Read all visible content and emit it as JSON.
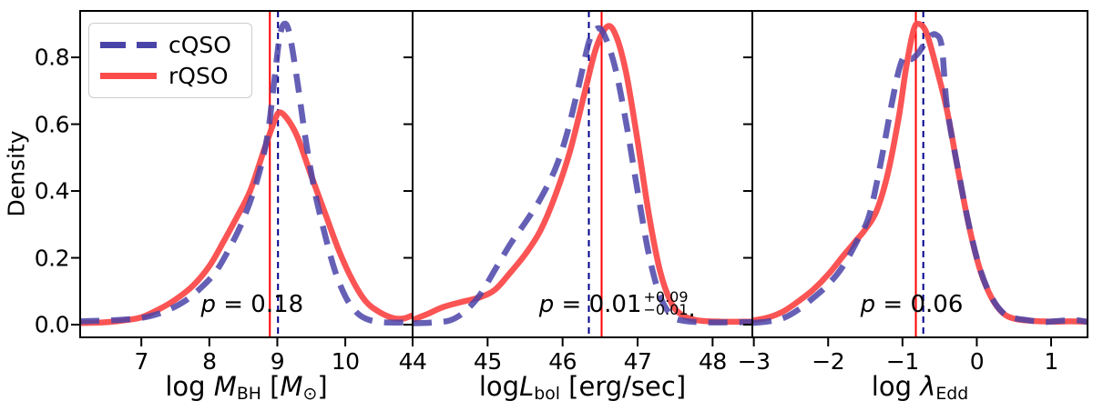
{
  "figure": {
    "ylabel": "Density",
    "y_ticks": {
      "values": [
        0.0,
        0.2,
        0.4,
        0.6,
        0.8
      ],
      "labels": [
        "0.0",
        "0.2",
        "0.4",
        "0.6",
        "0.8"
      ]
    },
    "y_range": [
      -0.038,
      0.939
    ],
    "colors": {
      "cqso_curve": "#4a44a8",
      "rqso_curve": "#fb4b4b",
      "cqso_median_line": "#00008b",
      "rqso_median_line": "#ff0000",
      "axis": "#000000",
      "background": "#ffffff"
    },
    "legend": {
      "entries": [
        {
          "label": "cQSO",
          "style": "dashed",
          "color": "#4a44a8"
        },
        {
          "label": "rQSO",
          "style": "solid",
          "color": "#fb4b4b"
        }
      ]
    }
  },
  "chart_data": [
    {
      "type": "line",
      "panel": "black-hole-mass",
      "xlabel": "log M_BH [M_sun]",
      "xlabel_parts": [
        {
          "t": "log "
        },
        {
          "t": "M",
          "i": true
        },
        {
          "t": "BH",
          "sub": true
        },
        {
          "t": " ["
        },
        {
          "t": "M",
          "i": true
        },
        {
          "t": "⊙",
          "sub": true
        },
        {
          "t": "]"
        }
      ],
      "x_range": [
        6.1,
        10.99
      ],
      "x_ticks": {
        "values": [
          7,
          8,
          9,
          10
        ],
        "labels": [
          "7",
          "8",
          "9",
          "10"
        ]
      },
      "vlines": {
        "rqso": 8.89,
        "cqso": 9.01
      },
      "annotation": {
        "main": "p = 0.18",
        "x": 8.63,
        "y": 0.055
      },
      "series": [
        {
          "name": "rQSO",
          "points": [
            [
              6.1,
              0.005
            ],
            [
              6.45,
              0.007
            ],
            [
              6.75,
              0.013
            ],
            [
              7.0,
              0.022
            ],
            [
              7.25,
              0.045
            ],
            [
              7.5,
              0.075
            ],
            [
              7.75,
              0.115
            ],
            [
              8.0,
              0.175
            ],
            [
              8.2,
              0.245
            ],
            [
              8.4,
              0.32
            ],
            [
              8.6,
              0.4
            ],
            [
              8.8,
              0.52
            ],
            [
              8.95,
              0.605
            ],
            [
              9.03,
              0.635
            ],
            [
              9.15,
              0.615
            ],
            [
              9.3,
              0.56
            ],
            [
              9.5,
              0.445
            ],
            [
              9.7,
              0.335
            ],
            [
              9.9,
              0.225
            ],
            [
              10.1,
              0.135
            ],
            [
              10.3,
              0.07
            ],
            [
              10.5,
              0.038
            ],
            [
              10.7,
              0.02
            ],
            [
              10.85,
              0.018
            ],
            [
              10.99,
              0.028
            ]
          ]
        },
        {
          "name": "cQSO",
          "points": [
            [
              6.1,
              0.01
            ],
            [
              6.45,
              0.012
            ],
            [
              6.75,
              0.015
            ],
            [
              7.05,
              0.022
            ],
            [
              7.35,
              0.04
            ],
            [
              7.65,
              0.072
            ],
            [
              7.9,
              0.115
            ],
            [
              8.1,
              0.16
            ],
            [
              8.3,
              0.23
            ],
            [
              8.5,
              0.315
            ],
            [
              8.7,
              0.43
            ],
            [
              8.85,
              0.56
            ],
            [
              8.95,
              0.72
            ],
            [
              9.03,
              0.855
            ],
            [
              9.1,
              0.9
            ],
            [
              9.18,
              0.87
            ],
            [
              9.3,
              0.72
            ],
            [
              9.42,
              0.55
            ],
            [
              9.55,
              0.4
            ],
            [
              9.7,
              0.27
            ],
            [
              9.85,
              0.16
            ],
            [
              10.0,
              0.085
            ],
            [
              10.15,
              0.04
            ],
            [
              10.3,
              0.018
            ],
            [
              10.5,
              0.008
            ],
            [
              10.75,
              0.006
            ],
            [
              10.99,
              0.008
            ]
          ]
        }
      ]
    },
    {
      "type": "line",
      "panel": "bolometric-luminosity",
      "xlabel": "logL_bol [erg/sec]",
      "xlabel_parts": [
        {
          "t": "log"
        },
        {
          "t": "L",
          "i": true
        },
        {
          "t": "bol",
          "sub": true
        },
        {
          "t": " [erg/sec]"
        }
      ],
      "x_range": [
        44.0,
        48.53
      ],
      "x_ticks": {
        "values": [
          44,
          45,
          46,
          47,
          48
        ],
        "labels": [
          "44",
          "45",
          "46",
          "47",
          "48"
        ]
      },
      "vlines": {
        "rqso": 46.52,
        "cqso": 46.35
      },
      "annotation": {
        "main": "p = 0.01",
        "sup": "+0.09",
        "sub": "−0.01",
        "tail": ".",
        "x": 46.73,
        "y": 0.055
      },
      "series": [
        {
          "name": "rQSO",
          "points": [
            [
              44.0,
              0.014
            ],
            [
              44.2,
              0.032
            ],
            [
              44.4,
              0.052
            ],
            [
              44.65,
              0.068
            ],
            [
              44.9,
              0.082
            ],
            [
              45.1,
              0.105
            ],
            [
              45.3,
              0.155
            ],
            [
              45.5,
              0.21
            ],
            [
              45.7,
              0.28
            ],
            [
              45.9,
              0.385
            ],
            [
              46.1,
              0.52
            ],
            [
              46.3,
              0.7
            ],
            [
              46.45,
              0.83
            ],
            [
              46.6,
              0.893
            ],
            [
              46.72,
              0.86
            ],
            [
              46.85,
              0.75
            ],
            [
              47.0,
              0.55
            ],
            [
              47.15,
              0.33
            ],
            [
              47.3,
              0.16
            ],
            [
              47.45,
              0.065
            ],
            [
              47.6,
              0.028
            ],
            [
              47.8,
              0.013
            ],
            [
              48.1,
              0.009
            ],
            [
              48.53,
              0.009
            ]
          ]
        },
        {
          "name": "cQSO",
          "points": [
            [
              44.0,
              0.004
            ],
            [
              44.25,
              0.006
            ],
            [
              44.5,
              0.013
            ],
            [
              44.7,
              0.04
            ],
            [
              44.9,
              0.09
            ],
            [
              45.1,
              0.165
            ],
            [
              45.3,
              0.24
            ],
            [
              45.5,
              0.305
            ],
            [
              45.7,
              0.375
            ],
            [
              45.9,
              0.465
            ],
            [
              46.05,
              0.565
            ],
            [
              46.2,
              0.7
            ],
            [
              46.35,
              0.845
            ],
            [
              46.45,
              0.885
            ],
            [
              46.55,
              0.87
            ],
            [
              46.7,
              0.77
            ],
            [
              46.85,
              0.6
            ],
            [
              47.0,
              0.4
            ],
            [
              47.15,
              0.21
            ],
            [
              47.3,
              0.085
            ],
            [
              47.45,
              0.028
            ],
            [
              47.6,
              0.012
            ],
            [
              47.9,
              0.007
            ],
            [
              48.2,
              0.007
            ],
            [
              48.53,
              0.008
            ]
          ]
        }
      ]
    },
    {
      "type": "line",
      "panel": "eddington-ratio",
      "xlabel": "log λ_Edd",
      "xlabel_parts": [
        {
          "t": "log "
        },
        {
          "t": "λ",
          "i": true
        },
        {
          "t": "Edd",
          "sub": true
        }
      ],
      "x_range": [
        -3.02,
        1.49
      ],
      "x_ticks": {
        "values": [
          -3,
          -2,
          -1,
          0,
          1
        ],
        "labels": [
          "−3",
          "−2",
          "−1",
          "0",
          "1"
        ]
      },
      "vlines": {
        "rqso": -0.82,
        "cqso": -0.72
      },
      "annotation": {
        "main": "p = 0.06",
        "x": -0.875,
        "y": 0.055
      },
      "series": [
        {
          "name": "rQSO",
          "points": [
            [
              -3.02,
              0.012
            ],
            [
              -2.8,
              0.022
            ],
            [
              -2.6,
              0.04
            ],
            [
              -2.4,
              0.07
            ],
            [
              -2.2,
              0.105
            ],
            [
              -2.0,
              0.15
            ],
            [
              -1.8,
              0.205
            ],
            [
              -1.65,
              0.245
            ],
            [
              -1.5,
              0.285
            ],
            [
              -1.35,
              0.34
            ],
            [
              -1.2,
              0.45
            ],
            [
              -1.05,
              0.62
            ],
            [
              -0.95,
              0.77
            ],
            [
              -0.85,
              0.882
            ],
            [
              -0.78,
              0.9
            ],
            [
              -0.68,
              0.875
            ],
            [
              -0.55,
              0.775
            ],
            [
              -0.4,
              0.64
            ],
            [
              -0.25,
              0.46
            ],
            [
              -0.1,
              0.29
            ],
            [
              0.05,
              0.16
            ],
            [
              0.2,
              0.08
            ],
            [
              0.35,
              0.035
            ],
            [
              0.5,
              0.018
            ],
            [
              0.7,
              0.012
            ],
            [
              1.0,
              0.009
            ],
            [
              1.25,
              0.01
            ],
            [
              1.49,
              0.009
            ]
          ]
        },
        {
          "name": "cQSO",
          "points": [
            [
              -3.02,
              0.005
            ],
            [
              -2.8,
              0.01
            ],
            [
              -2.6,
              0.02
            ],
            [
              -2.4,
              0.045
            ],
            [
              -2.2,
              0.08
            ],
            [
              -2.0,
              0.12
            ],
            [
              -1.8,
              0.175
            ],
            [
              -1.6,
              0.255
            ],
            [
              -1.45,
              0.325
            ],
            [
              -1.3,
              0.475
            ],
            [
              -1.15,
              0.655
            ],
            [
              -1.05,
              0.76
            ],
            [
              -0.97,
              0.805
            ],
            [
              -0.88,
              0.795
            ],
            [
              -0.78,
              0.815
            ],
            [
              -0.65,
              0.858
            ],
            [
              -0.55,
              0.868
            ],
            [
              -0.47,
              0.83
            ],
            [
              -0.4,
              0.65
            ],
            [
              -0.25,
              0.462
            ],
            [
              -0.1,
              0.292
            ],
            [
              0.05,
              0.162
            ],
            [
              0.2,
              0.082
            ],
            [
              0.35,
              0.036
            ],
            [
              0.5,
              0.02
            ],
            [
              0.7,
              0.013
            ],
            [
              0.9,
              0.008
            ],
            [
              1.15,
              0.012
            ],
            [
              1.35,
              0.013
            ],
            [
              1.49,
              0.008
            ]
          ]
        }
      ]
    }
  ]
}
